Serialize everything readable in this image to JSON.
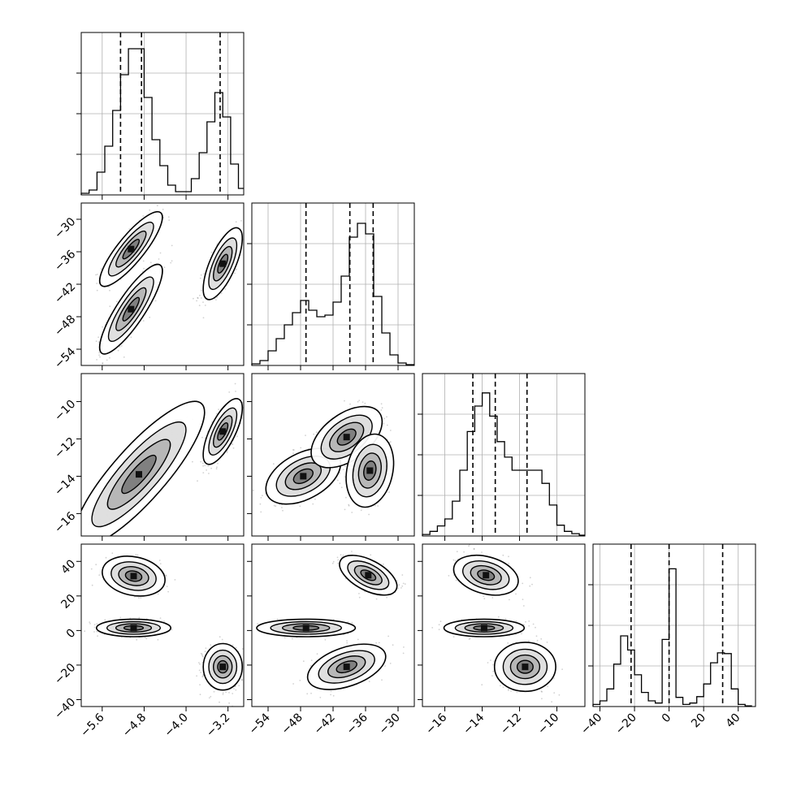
{
  "chart_data": {
    "type": "corner",
    "title": "",
    "parameters": [
      {
        "range": [
          -6.0,
          -2.9
        ],
        "ticks": [
          -5.6,
          -4.8,
          -4.0,
          -3.2
        ],
        "tick_labels": [
          "−5.6",
          "−4.8",
          "−4.0",
          "−3.2"
        ]
      },
      {
        "range": [
          -57.0,
          -27.0
        ],
        "ticks": [
          -54,
          -48,
          -42,
          -36,
          -30
        ],
        "tick_labels": [
          "−54",
          "−48",
          "−42",
          "−36",
          "−30"
        ]
      },
      {
        "range": [
          -17.2,
          -8.5
        ],
        "ticks": [
          -16,
          -14,
          -12,
          -10
        ],
        "tick_labels": [
          "−16",
          "−14",
          "−12",
          "−10"
        ]
      },
      {
        "range": [
          -44.0,
          50.0
        ],
        "ticks": [
          -40,
          -20,
          0,
          20,
          40
        ],
        "tick_labels": [
          "−40",
          "−20",
          "0",
          "20",
          "40"
        ]
      }
    ],
    "histograms": [
      {
        "param": 0,
        "bin_edges": [
          -6.0,
          -5.85,
          -5.7,
          -5.55,
          -5.4,
          -5.25,
          -5.1,
          -4.95,
          -4.8,
          -4.65,
          -4.5,
          -4.35,
          -4.2,
          -4.05,
          -3.9,
          -3.75,
          -3.6,
          -3.45,
          -3.3,
          -3.15,
          -3.0,
          -2.9
        ],
        "counts": [
          1,
          3,
          14,
          30,
          52,
          74,
          90,
          90,
          60,
          34,
          18,
          6,
          2,
          2,
          10,
          26,
          45,
          63,
          48,
          19,
          4
        ],
        "ymax": 100,
        "quantiles": [
          -5.25,
          -4.85,
          -3.35
        ]
      },
      {
        "param": 1,
        "bin_edges": [
          -57,
          -55.5,
          -54,
          -52.5,
          -51,
          -49.5,
          -48,
          -46.5,
          -45,
          -43.5,
          -42,
          -40.5,
          -39,
          -37.5,
          -36,
          -34.5,
          -33,
          -31.5,
          -30,
          -28.5,
          -27
        ],
        "counts": [
          2,
          6,
          18,
          33,
          50,
          65,
          80,
          68,
          60,
          62,
          78,
          110,
          158,
          175,
          162,
          85,
          40,
          13,
          3,
          1
        ],
        "ymax": 200,
        "quantiles": [
          -47.0,
          -38.9,
          -34.6
        ]
      },
      {
        "param": 2,
        "bin_edges": [
          -17.2,
          -16.8,
          -16.4,
          -16.0,
          -15.6,
          -15.2,
          -14.8,
          -14.4,
          -14.0,
          -13.6,
          -13.2,
          -12.8,
          -12.4,
          -12.0,
          -11.6,
          -11.2,
          -10.8,
          -10.4,
          -10.0,
          -9.6,
          -9.2,
          -8.8,
          -8.5
        ],
        "counts": [
          2,
          6,
          13,
          22,
          45,
          85,
          135,
          168,
          185,
          155,
          122,
          102,
          85,
          85,
          85,
          85,
          68,
          40,
          14,
          6,
          3,
          1
        ],
        "ymax": 210,
        "quantiles": [
          -14.5,
          -13.3,
          -11.6
        ]
      },
      {
        "param": 3,
        "bin_edges": [
          -44,
          -40,
          -36,
          -32,
          -28,
          -24,
          -20,
          -16,
          -12,
          -8,
          -4,
          0,
          4,
          8,
          12,
          16,
          20,
          24,
          28,
          32,
          36,
          40,
          44,
          48
        ],
        "counts": [
          3,
          8,
          25,
          60,
          100,
          80,
          45,
          20,
          8,
          5,
          95,
          195,
          13,
          3,
          5,
          14,
          32,
          62,
          76,
          75,
          25,
          3,
          1
        ],
        "ymax": 230,
        "quantiles": [
          -22,
          0,
          31
        ]
      }
    ],
    "pairs": [
      {
        "x": 0,
        "y": 1,
        "modes": [
          {
            "cx": -5.05,
            "cy": -35.5,
            "sx": 0.26,
            "sy": 3.0,
            "r": 0.85,
            "n": 420,
            "w": 1.0,
            "skew": 0
          },
          {
            "cx": -5.05,
            "cy": -46.6,
            "sx": 0.26,
            "sy": 3.6,
            "r": 0.85,
            "n": 450,
            "w": 1.0,
            "skew": 0
          },
          {
            "cx": -3.3,
            "cy": -38.2,
            "sx": 0.18,
            "sy": 3.2,
            "r": 0.7,
            "n": 360,
            "w": 0.9,
            "skew": 0
          }
        ]
      },
      {
        "x": 0,
        "y": 2,
        "modes": [
          {
            "cx": -4.9,
            "cy": -13.9,
            "sx": 0.32,
            "sy": 1.0,
            "r": 0.85,
            "n": 820,
            "w": 1.7,
            "skew": 0
          },
          {
            "cx": -3.3,
            "cy": -11.6,
            "sx": 0.18,
            "sy": 0.85,
            "r": 0.7,
            "n": 360,
            "w": 0.9,
            "skew": 0
          }
        ]
      },
      {
        "x": 0,
        "y": 3,
        "modes": [
          {
            "cx": -5.0,
            "cy": 31.5,
            "sx": 0.26,
            "sy": 5.0,
            "r": -0.2,
            "n": 350,
            "w": 1.0,
            "skew": 0
          },
          {
            "cx": -5.0,
            "cy": 1.5,
            "sx": 0.28,
            "sy": 2.0,
            "r": 0.0,
            "n": 520,
            "w": 1.1,
            "skew": 0
          },
          {
            "cx": -3.3,
            "cy": -21.0,
            "sx": 0.18,
            "sy": 6.5,
            "r": 0.0,
            "n": 360,
            "w": 0.9,
            "skew": 0
          }
        ]
      },
      {
        "x": 1,
        "y": 2,
        "modes": [
          {
            "cx": -47.5,
            "cy": -14.0,
            "sx": 3.0,
            "sy": 0.65,
            "r": 0.45,
            "n": 520,
            "w": 1.0,
            "skew": 0
          },
          {
            "cx": -39.5,
            "cy": -11.9,
            "sx": 3.0,
            "sy": 0.75,
            "r": 0.5,
            "n": 400,
            "w": 0.95,
            "skew": 0
          },
          {
            "cx": -35.2,
            "cy": -13.7,
            "sx": 1.9,
            "sy": 0.85,
            "r": 0.2,
            "n": 450,
            "w": 1.0,
            "skew": 0
          }
        ]
      },
      {
        "x": 1,
        "y": 3,
        "modes": [
          {
            "cx": -35.5,
            "cy": 32.0,
            "sx": 2.3,
            "sy": 5.0,
            "r": -0.55,
            "n": 360,
            "w": 1.0,
            "skew": 0
          },
          {
            "cx": -47.0,
            "cy": 1.5,
            "sx": 3.6,
            "sy": 2.0,
            "r": 0.0,
            "n": 520,
            "w": 1.1,
            "skew": 0
          },
          {
            "cx": -39.5,
            "cy": -21.0,
            "sx": 3.3,
            "sy": 6.0,
            "r": 0.45,
            "n": 380,
            "w": 0.95,
            "skew": 0
          }
        ]
      },
      {
        "x": 2,
        "y": 3,
        "modes": [
          {
            "cx": -13.8,
            "cy": 32.0,
            "sx": 0.75,
            "sy": 5.0,
            "r": -0.3,
            "n": 380,
            "w": 1.0,
            "skew": 0
          },
          {
            "cx": -13.9,
            "cy": 1.5,
            "sx": 0.85,
            "sy": 2.0,
            "r": 0.0,
            "n": 520,
            "w": 1.1,
            "skew": 0
          },
          {
            "cx": -11.7,
            "cy": -21.0,
            "sx": 0.75,
            "sy": 6.5,
            "r": 0.0,
            "n": 400,
            "w": 0.95,
            "skew": 0
          }
        ]
      }
    ],
    "grid": true,
    "histogram_ticks_labeled": false
  }
}
